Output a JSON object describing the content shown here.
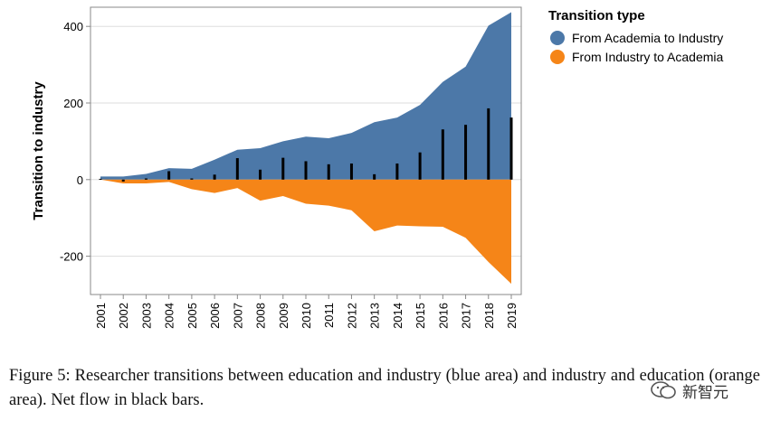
{
  "chart_data": {
    "type": "area",
    "title": "",
    "xlabel": "",
    "ylabel": "Transition to industry",
    "ylim": [
      -300,
      450
    ],
    "yticks": [
      400,
      200,
      0,
      -200
    ],
    "categories": [
      "2001",
      "2002",
      "2003",
      "2004",
      "2005",
      "2006",
      "2007",
      "2008",
      "2009",
      "2010",
      "2011",
      "2012",
      "2013",
      "2014",
      "2015",
      "2016",
      "2017",
      "2018",
      "2019"
    ],
    "legend_title": "Transition type",
    "legend_position": "top-right",
    "series": [
      {
        "name": "From Academia to Industry",
        "color": "#4c78a8",
        "values": [
          8,
          8,
          15,
          30,
          28,
          52,
          78,
          82,
          100,
          112,
          108,
          122,
          150,
          162,
          195,
          255,
          295,
          402,
          437
        ]
      },
      {
        "name": "From Industry to Academia",
        "color": "#f58518",
        "values": [
          0,
          -10,
          -10,
          -6,
          -25,
          -35,
          -22,
          -55,
          -43,
          -63,
          -68,
          -80,
          -135,
          -120,
          -122,
          -123,
          -152,
          -215,
          -272
        ]
      },
      {
        "name": "Net flow",
        "color": "#000000",
        "type": "bar",
        "values": [
          2,
          -5,
          3,
          22,
          3,
          13,
          56,
          26,
          57,
          48,
          40,
          42,
          14,
          42,
          71,
          131,
          143,
          186,
          162
        ]
      }
    ]
  },
  "caption": {
    "text": "Figure 5: Researcher transitions between education and industry (blue area) and industry and education (orange area). Net flow in black bars."
  },
  "watermark": {
    "text": "新智元",
    "icon": "wechat-icon"
  }
}
